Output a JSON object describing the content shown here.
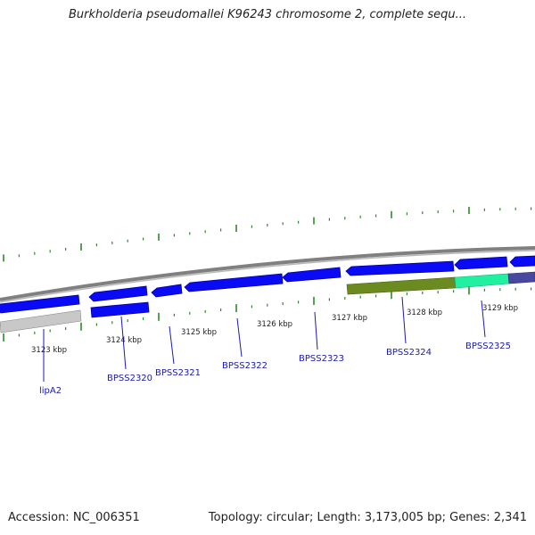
{
  "title": "Burkholderia pseudomallei K96243 chromosome 2, complete sequ...",
  "footer": {
    "accession": "Accession: NC_006351",
    "topology": "Topology: circular; Length: 3,173,005 bp; Genes: 2,341"
  },
  "colors": {
    "gene_forward": "#0a0af5",
    "gene_reverse": "#0a0af5",
    "backbone": "#8a8a8a",
    "tick_marks": "#2a8a2a",
    "gene_label": "#1a1ab4",
    "leader_line": "#1a1ab4",
    "feature_gray": "#c8c8c8",
    "feature_olive": "#6b8a1f",
    "feature_green": "#20f0a0",
    "feature_indigo": "#4848a0"
  },
  "scale_labels": [
    "3123 kbp",
    "3124 kbp",
    "3125 kbp",
    "3126 kbp",
    "3127 kbp",
    "3128 kbp",
    "3129 kbp"
  ],
  "genes": [
    "lipA2",
    "BPSS2320",
    "BPSS2321",
    "BPSS2322",
    "BPSS2323",
    "BPSS2324",
    "BPSS2325"
  ]
}
